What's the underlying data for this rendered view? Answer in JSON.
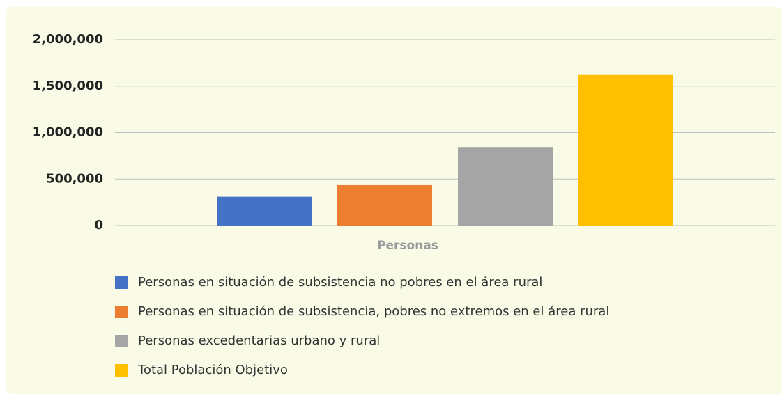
{
  "chart_data": {
    "type": "bar",
    "categories": [
      "Personas"
    ],
    "series": [
      {
        "name": "Personas en situación de subsistencia no pobres en el área rural",
        "color": "#4472c4",
        "values": [
          310000
        ]
      },
      {
        "name": "Personas en situación de subsistencia, pobres no extremos en el área rural",
        "color": "#ed7d31",
        "values": [
          435000
        ]
      },
      {
        "name": "Personas excedentarias urbano y rural",
        "color": "#a5a5a5",
        "values": [
          845000
        ]
      },
      {
        "name": "Total Población Objetivo",
        "color": "#ffc000",
        "values": [
          1620000
        ]
      }
    ],
    "ylim": [
      0,
      2000000
    ],
    "yticks": [
      0,
      {
        "value": 500000,
        "label": "500,000"
      },
      {
        "value": 1000000,
        "label": "1,000,000"
      },
      {
        "value": 1500000,
        "label": "1,500,000"
      },
      {
        "value": 2000000,
        "label": "2,000,000"
      }
    ],
    "grid": true,
    "legend": "bottom"
  }
}
